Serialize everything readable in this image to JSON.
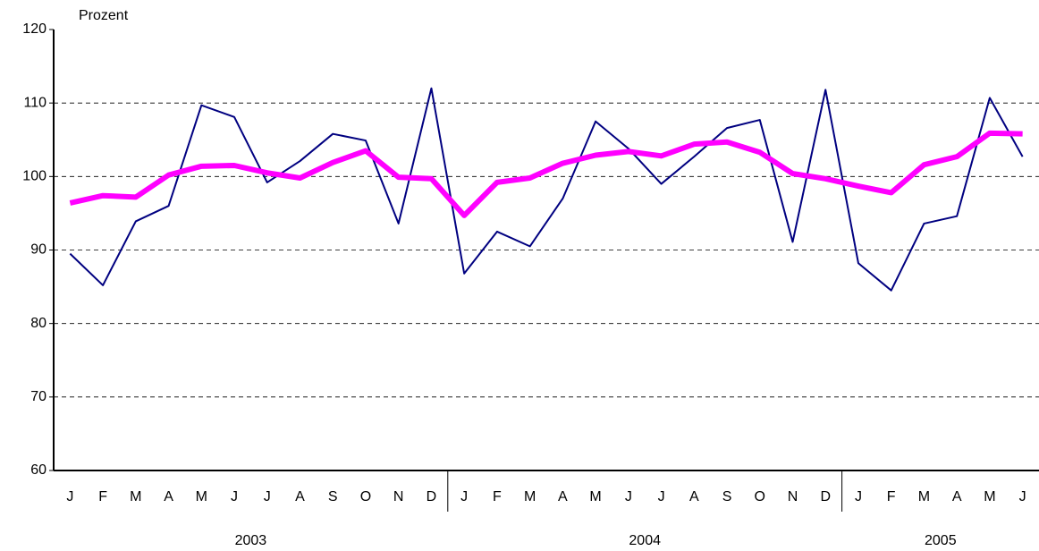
{
  "chart_data": {
    "type": "line",
    "y_label": "Prozent",
    "categories": [
      "J",
      "F",
      "M",
      "A",
      "M",
      "J",
      "J",
      "A",
      "S",
      "O",
      "N",
      "D",
      "J",
      "F",
      "M",
      "A",
      "M",
      "J",
      "J",
      "A",
      "S",
      "O",
      "N",
      "D",
      "J",
      "F",
      "M",
      "A",
      "M",
      "J"
    ],
    "years": [
      "2003",
      "2004",
      "2005"
    ],
    "series": [
      {
        "color": "#000080",
        "width": 2,
        "values": [
          89.5,
          85.2,
          93.9,
          96,
          109.7,
          108.1,
          99.2,
          102.1,
          105.8,
          104.9,
          93.6,
          112,
          86.8,
          92.5,
          90.5,
          97,
          107.5,
          103.8,
          99,
          102.7,
          106.6,
          107.7,
          91.1,
          111.8,
          88.2,
          84.5,
          93.6,
          94.6,
          110.7,
          102.7
        ]
      },
      {
        "color": "#ff00ff",
        "width": 6,
        "values": [
          96.4,
          97.4,
          97.2,
          100.2,
          101.4,
          101.5,
          100.5,
          99.8,
          101.9,
          103.5,
          99.9,
          99.7,
          94.7,
          99.2,
          99.8,
          101.8,
          102.9,
          103.4,
          102.8,
          104.4,
          104.7,
          103.3,
          100.4,
          99.7,
          98.7,
          97.8,
          101.6,
          102.7,
          105.9,
          105.8
        ]
      }
    ],
    "ylim": [
      60,
      120
    ],
    "yticks": [
      60,
      70,
      80,
      90,
      100,
      110,
      120
    ],
    "grid": true
  }
}
